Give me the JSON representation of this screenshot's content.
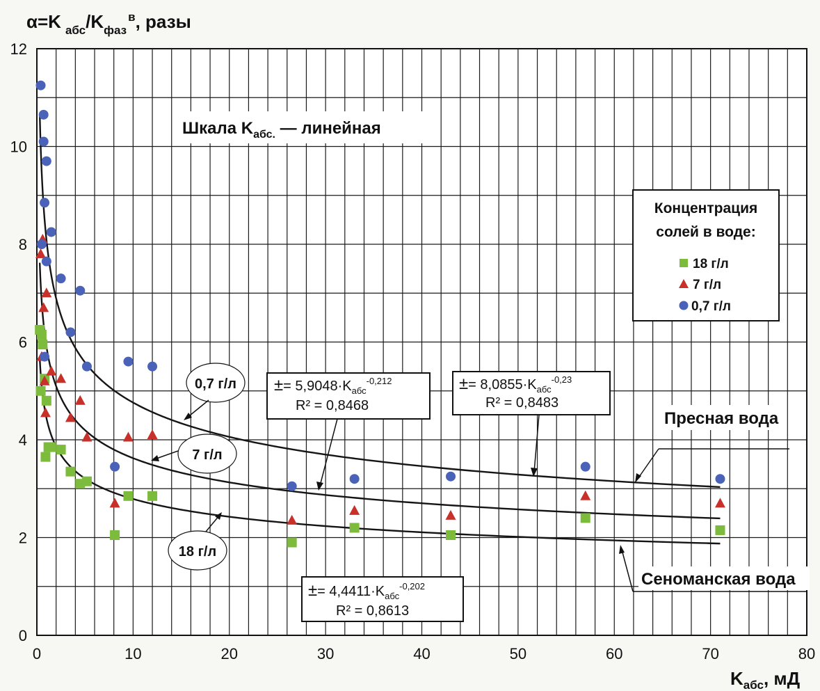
{
  "chart_data": {
    "type": "scatter",
    "ylabel_prefix": "α=K",
    "ylabel_sub1": "абс",
    "ylabel_mid": "/K",
    "ylabel_sub2": "фаз",
    "ylabel_sup": "в",
    "ylabel_suffix": ", разы",
    "xlabel_main": "K",
    "xlabel_sub": "абс",
    "xlabel_suffix": ", мД",
    "xlim": [
      0,
      80
    ],
    "ylim": [
      0,
      12
    ],
    "xticks": [
      0,
      10,
      20,
      30,
      40,
      50,
      60,
      70,
      80
    ],
    "yticks": [
      0,
      2,
      4,
      6,
      8,
      10,
      12
    ],
    "grid": true,
    "scale_note_main": "Шкала K",
    "scale_note_sub": "абс.",
    "scale_note_suffix": " — линейная",
    "legend": {
      "title_line1": "Концентрация",
      "title_line2": "солей в воде:",
      "placement": "right"
    },
    "series": [
      {
        "name": "18  г/л",
        "marker": "square",
        "color": "#7dbb3c",
        "points": [
          [
            0.3,
            6.25
          ],
          [
            0.5,
            6.15
          ],
          [
            0.6,
            5.95
          ],
          [
            0.4,
            5.0
          ],
          [
            0.8,
            5.25
          ],
          [
            1.0,
            4.8
          ],
          [
            0.9,
            3.65
          ],
          [
            1.2,
            3.85
          ],
          [
            1.5,
            3.85
          ],
          [
            2.5,
            3.8
          ],
          [
            3.5,
            3.35
          ],
          [
            4.5,
            3.1
          ],
          [
            5.2,
            3.15
          ],
          [
            8.1,
            2.05
          ],
          [
            9.5,
            2.85
          ],
          [
            12.0,
            2.85
          ],
          [
            26.5,
            1.9
          ],
          [
            33.0,
            2.2
          ],
          [
            43.0,
            2.05
          ],
          [
            57.0,
            2.4
          ],
          [
            71.0,
            2.15
          ]
        ]
      },
      {
        "name": "7   г/л",
        "marker": "triangle",
        "color": "#c8302a",
        "points": [
          [
            0.4,
            7.8
          ],
          [
            0.6,
            8.1
          ],
          [
            0.7,
            6.7
          ],
          [
            1.0,
            7.0
          ],
          [
            0.5,
            5.7
          ],
          [
            0.8,
            5.2
          ],
          [
            0.9,
            4.55
          ],
          [
            1.5,
            5.4
          ],
          [
            2.5,
            5.25
          ],
          [
            3.5,
            4.45
          ],
          [
            4.5,
            4.8
          ],
          [
            5.2,
            4.05
          ],
          [
            8.1,
            2.7
          ],
          [
            9.5,
            4.05
          ],
          [
            12.0,
            4.1
          ],
          [
            26.5,
            2.35
          ],
          [
            33.0,
            2.55
          ],
          [
            43.0,
            2.45
          ],
          [
            57.0,
            2.85
          ],
          [
            71.0,
            2.7
          ]
        ]
      },
      {
        "name": "0,7  г/л",
        "marker": "circle",
        "color": "#4a62b8",
        "points": [
          [
            0.4,
            11.25
          ],
          [
            0.7,
            10.65
          ],
          [
            0.7,
            10.1
          ],
          [
            1.0,
            9.7
          ],
          [
            0.8,
            8.85
          ],
          [
            1.5,
            8.25
          ],
          [
            0.5,
            8.0
          ],
          [
            1.0,
            7.65
          ],
          [
            2.5,
            7.3
          ],
          [
            4.5,
            7.05
          ],
          [
            3.5,
            6.2
          ],
          [
            0.8,
            5.7
          ],
          [
            5.2,
            5.5
          ],
          [
            9.5,
            5.6
          ],
          [
            12.0,
            5.5
          ],
          [
            8.1,
            3.45
          ],
          [
            26.5,
            3.05
          ],
          [
            33.0,
            3.2
          ],
          [
            43.0,
            3.25
          ],
          [
            57.0,
            3.45
          ],
          [
            71.0,
            3.2
          ]
        ]
      }
    ],
    "trendlines": [
      {
        "a": 8.0855,
        "b": -0.23,
        "label": "0,7 г/л"
      },
      {
        "a": 5.9048,
        "b": -0.212,
        "label": "7 г/л"
      },
      {
        "a": 4.4411,
        "b": -0.202,
        "label": "18 г/л"
      }
    ],
    "equations": [
      {
        "sym": "±",
        "coef": "= 5,9048·K",
        "sub": "абс",
        "exp": "-0,212",
        "r2": "R² = 0,8468"
      },
      {
        "sym": "±",
        "coef": "= 8,0855·K",
        "sub": "абс",
        "exp": "-0,23",
        "r2": "R² = 0,8483"
      },
      {
        "sym": "±",
        "coef": "= 4,4411·K",
        "sub": "абс",
        "exp": "-0,202",
        "r2": "R² = 0,8613"
      }
    ],
    "annotations": {
      "fresh_water": "Пресная вода",
      "cenomanian_water": "Сеноманская вода"
    }
  }
}
